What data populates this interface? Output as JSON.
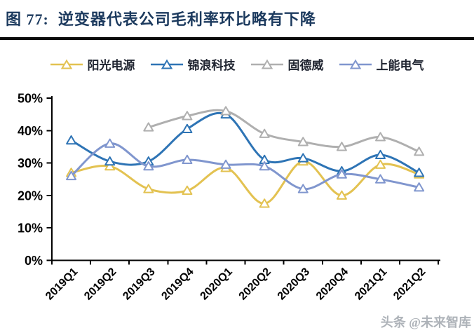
{
  "header": {
    "title": "图 77:  逆变器代表公司毛利率环比略有下降"
  },
  "watermark": "头条 @未来智库",
  "chart_data": {
    "type": "line",
    "title": "逆变器代表公司毛利率环比略有下降",
    "categories": [
      "2019Q1",
      "2019Q2",
      "2019Q3",
      "2019Q4",
      "2020Q1",
      "2020Q2",
      "2020Q3",
      "2020Q4",
      "2021Q1",
      "2021Q2"
    ],
    "series": [
      {
        "name": "阳光电源",
        "color": "#E3C251",
        "values": [
          27,
          29,
          22,
          21.5,
          28.5,
          17.5,
          30.5,
          20,
          29.5,
          26.5
        ]
      },
      {
        "name": "锦浪科技",
        "color": "#2E74B5",
        "values": [
          37,
          30.5,
          30.5,
          40.5,
          45,
          31,
          31.5,
          27.5,
          32.5,
          27
        ]
      },
      {
        "name": "固德威",
        "color": "#AFAFAF",
        "values": [
          null,
          null,
          41,
          44.5,
          46,
          39,
          36.5,
          35,
          38,
          33.5
        ]
      },
      {
        "name": "上能电气",
        "color": "#8096CE",
        "values": [
          26,
          36,
          29,
          31,
          29.5,
          29,
          22,
          26.5,
          25,
          22.5
        ]
      }
    ],
    "xlabel": "",
    "ylabel": "",
    "ylim": [
      0,
      50
    ],
    "yticks": [
      "0%",
      "10%",
      "20%",
      "30%",
      "40%",
      "50%"
    ],
    "grid": false,
    "legend_position": "top",
    "marker": "triangle-open",
    "line_style": "smooth"
  }
}
